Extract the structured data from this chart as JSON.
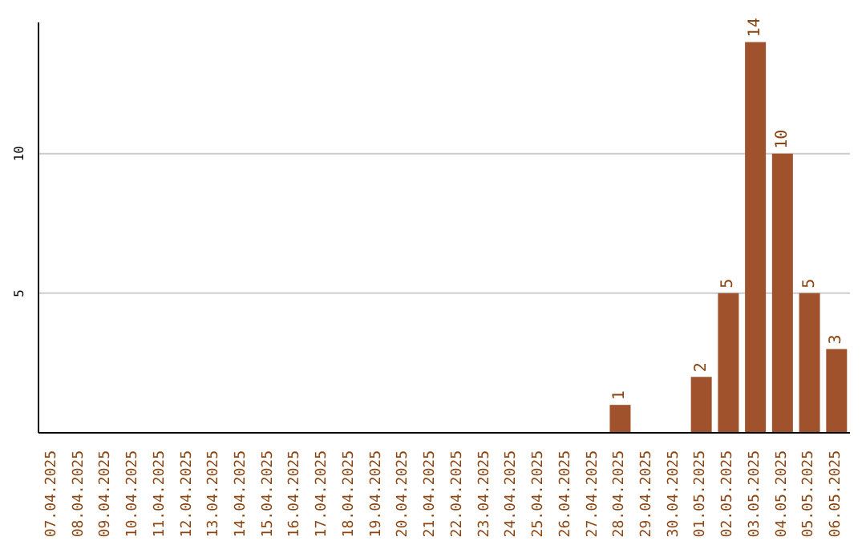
{
  "chart_data": {
    "type": "bar",
    "categories": [
      "07.04.2025",
      "08.04.2025",
      "09.04.2025",
      "10.04.2025",
      "11.04.2025",
      "12.04.2025",
      "13.04.2025",
      "14.04.2025",
      "15.04.2025",
      "16.04.2025",
      "17.04.2025",
      "18.04.2025",
      "19.04.2025",
      "20.04.2025",
      "21.04.2025",
      "22.04.2025",
      "23.04.2025",
      "24.04.2025",
      "25.04.2025",
      "26.04.2025",
      "27.04.2025",
      "28.04.2025",
      "29.04.2025",
      "30.04.2025",
      "01.05.2025",
      "02.05.2025",
      "03.05.2025",
      "04.05.2025",
      "05.05.2025",
      "06.05.2025"
    ],
    "values": [
      0,
      0,
      0,
      0,
      0,
      0,
      0,
      0,
      0,
      0,
      0,
      0,
      0,
      0,
      0,
      0,
      0,
      0,
      0,
      0,
      0,
      1,
      0,
      0,
      2,
      5,
      14,
      10,
      5,
      3
    ],
    "value_labels": [
      null,
      null,
      null,
      null,
      null,
      null,
      null,
      null,
      null,
      null,
      null,
      null,
      null,
      null,
      null,
      null,
      null,
      null,
      null,
      null,
      null,
      "1",
      null,
      null,
      "2",
      "5",
      "14",
      "10",
      "5",
      "3"
    ],
    "color": "#a0522d",
    "ylim": [
      0,
      14.7
    ],
    "yticks": [
      5,
      10
    ],
    "grid": "y",
    "legend": false
  }
}
